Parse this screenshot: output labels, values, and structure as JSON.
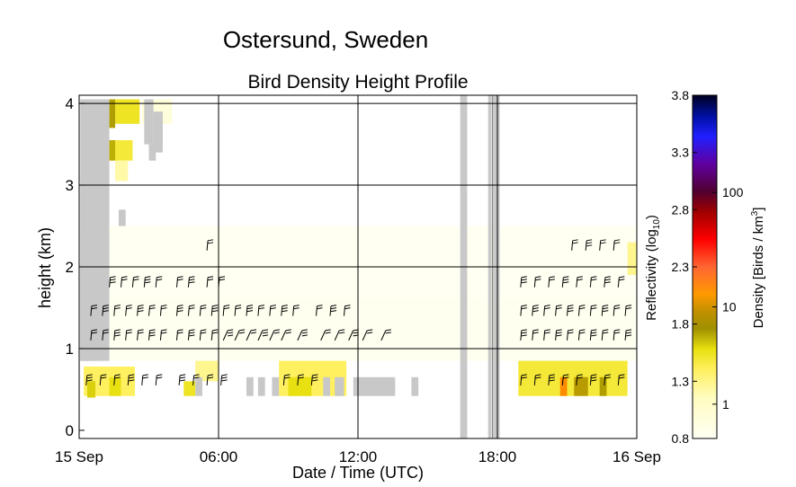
{
  "chart_data": {
    "type": "heatmap",
    "suptitle": "Ostersund, Sweden",
    "title": "Bird Density Height Profile",
    "xlabel": "Date / Time (UTC)",
    "ylabel": "height (km)",
    "x_ticks": [
      {
        "hour": 0,
        "label": "15 Sep"
      },
      {
        "hour": 6,
        "label": "06:00"
      },
      {
        "hour": 12,
        "label": "12:00"
      },
      {
        "hour": 18,
        "label": "18:00"
      },
      {
        "hour": 24,
        "label": "16 Sep"
      }
    ],
    "y_ticks": [
      0,
      1,
      2,
      3,
      4
    ],
    "xlim_hours": [
      0,
      24
    ],
    "ylim_km": [
      -0.1,
      4.1
    ],
    "grid": true,
    "colorbar": {
      "left_label": "Reflectivity (log",
      "left_label_sub": "10",
      "left_label_end": ")",
      "left_ticks": [
        "0.8",
        "1.3",
        "1.8",
        "2.3",
        "2.8",
        "3.3",
        "3.8"
      ],
      "left_range": [
        0.8,
        3.8
      ],
      "right_label": "Density [Birds / km",
      "right_label_sup": "3",
      "right_label_end": "]",
      "right_ticks": [
        {
          "label": "1",
          "value": 1
        },
        {
          "label": "10",
          "value": 10
        },
        {
          "label": "100",
          "value": 100
        }
      ],
      "right_ticks_value_at": [
        1.1,
        1.95,
        2.95
      ]
    },
    "missing_data_color": "#c8c8c8",
    "gaps_hours": [
      [
        16.4,
        16.7
      ],
      [
        17.6,
        17.75
      ],
      [
        17.85,
        18.1
      ]
    ],
    "gray_region": {
      "x_start_hours": 0.05,
      "steps": [
        {
          "top_km": 4.05,
          "x_end_hours": 1.3
        },
        {
          "top_km": 3.05,
          "x_end_hours": 1.1
        },
        {
          "top_km": 2.4,
          "x_end_hours": 0.8
        },
        {
          "top_km": 2.0,
          "x_end_hours": 0.6
        },
        {
          "top_km": 1.6,
          "x_end_hours": 0.4
        }
      ]
    },
    "density_cells": [
      {
        "t0": 1.3,
        "t1": 1.55,
        "h0": 3.7,
        "h1": 4.05,
        "v": 1.6
      },
      {
        "t0": 1.55,
        "t1": 2.6,
        "h0": 3.75,
        "h1": 4.05,
        "v": 1.35
      },
      {
        "t0": 1.3,
        "t1": 1.55,
        "h0": 3.3,
        "h1": 3.55,
        "v": 1.55
      },
      {
        "t0": 1.55,
        "t1": 2.3,
        "h0": 3.3,
        "h1": 3.55,
        "v": 1.3
      },
      {
        "t0": 1.55,
        "t1": 2.1,
        "h0": 3.05,
        "h1": 3.3,
        "v": 1.05
      },
      {
        "t0": 2.7,
        "t1": 4.0,
        "h0": 3.75,
        "h1": 4.05,
        "v": 0.9
      },
      {
        "t0": 0.2,
        "t1": 2.4,
        "h0": 0.42,
        "h1": 0.78,
        "v": 1.2
      },
      {
        "t0": 0.35,
        "t1": 0.7,
        "h0": 0.4,
        "h1": 0.6,
        "v": 1.45
      },
      {
        "t0": 1.3,
        "t1": 1.8,
        "h0": 0.42,
        "h1": 0.65,
        "v": 1.4
      },
      {
        "t0": 4.5,
        "t1": 5.0,
        "h0": 0.42,
        "h1": 0.6,
        "v": 1.35
      },
      {
        "t0": 5.0,
        "t1": 6.0,
        "h0": 0.6,
        "h1": 0.85,
        "v": 1.1
      },
      {
        "t0": 8.6,
        "t1": 11.5,
        "h0": 0.42,
        "h1": 0.85,
        "v": 1.2
      },
      {
        "t0": 9.0,
        "t1": 10.0,
        "h0": 0.42,
        "h1": 0.65,
        "v": 1.4
      },
      {
        "t0": 18.9,
        "t1": 23.6,
        "h0": 0.42,
        "h1": 0.85,
        "v": 1.3
      },
      {
        "t0": 20.7,
        "t1": 21.0,
        "h0": 0.42,
        "h1": 0.65,
        "v": 2.0
      },
      {
        "t0": 21.3,
        "t1": 21.9,
        "h0": 0.42,
        "h1": 0.65,
        "v": 1.65
      },
      {
        "t0": 22.4,
        "t1": 22.7,
        "h0": 0.42,
        "h1": 0.65,
        "v": 1.6
      },
      {
        "t0": 23.6,
        "t1": 24.0,
        "h0": 1.9,
        "h1": 2.3,
        "v": 1.1
      }
    ],
    "missing_cells": [
      {
        "t0": 2.8,
        "t1": 3.2,
        "h0": 3.5,
        "h1": 4.05
      },
      {
        "t0": 3.2,
        "t1": 3.6,
        "h0": 3.4,
        "h1": 3.9
      },
      {
        "t0": 3.0,
        "t1": 3.3,
        "h0": 3.3,
        "h1": 3.5
      },
      {
        "t0": 1.7,
        "t1": 2.0,
        "h0": 2.5,
        "h1": 2.7
      },
      {
        "t0": 5.0,
        "t1": 5.3,
        "h0": 0.42,
        "h1": 0.65
      },
      {
        "t0": 7.2,
        "t1": 7.5,
        "h0": 0.42,
        "h1": 0.65
      },
      {
        "t0": 7.7,
        "t1": 8.0,
        "h0": 0.42,
        "h1": 0.65
      },
      {
        "t0": 8.3,
        "t1": 8.6,
        "h0": 0.42,
        "h1": 0.65
      },
      {
        "t0": 10.5,
        "t1": 10.8,
        "h0": 0.42,
        "h1": 0.65
      },
      {
        "t0": 11.0,
        "t1": 11.4,
        "h0": 0.42,
        "h1": 0.65
      },
      {
        "t0": 11.8,
        "t1": 13.6,
        "h0": 0.42,
        "h1": 0.65
      },
      {
        "t0": 14.3,
        "t1": 14.6,
        "h0": 0.42,
        "h1": 0.65
      }
    ],
    "wind_barbs": {
      "heights_km": [
        0.55,
        1.1,
        1.4,
        1.75,
        2.2
      ],
      "rows": [
        {
          "h": 0.55,
          "times": [
            0.3,
            0.9,
            1.5,
            2.1,
            2.7,
            3.3,
            4.3,
            4.9,
            5.5,
            6.1,
            8.8,
            9.4,
            10.0,
            19.0,
            19.6,
            20.2,
            20.8,
            21.4,
            22.0,
            22.6,
            23.2
          ]
        },
        {
          "h": 1.1,
          "times": [
            0.5,
            1.0,
            1.5,
            2.0,
            2.5,
            3.0,
            3.5,
            4.2,
            4.7,
            5.2,
            5.7,
            6.2,
            6.7,
            7.2,
            7.7,
            8.2,
            8.7,
            9.4,
            10.4,
            11.0,
            11.6,
            12.2,
            13.0,
            19.0,
            19.5,
            20.0,
            20.5,
            21.0,
            21.5,
            22.0,
            22.5,
            23.0,
            23.5
          ]
        },
        {
          "h": 1.4,
          "times": [
            0.5,
            1.0,
            1.5,
            2.0,
            2.5,
            3.0,
            3.5,
            4.2,
            4.7,
            5.2,
            5.7,
            6.2,
            6.7,
            7.2,
            7.7,
            8.2,
            8.7,
            9.2,
            10.2,
            10.8,
            11.4,
            19.0,
            19.5,
            20.0,
            20.5,
            21.0,
            21.5,
            22.0,
            22.5,
            23.0,
            23.5
          ]
        },
        {
          "h": 1.75,
          "times": [
            1.3,
            1.8,
            2.3,
            2.8,
            3.3,
            4.2,
            4.7,
            5.5,
            6.0,
            19.0,
            19.6,
            20.2,
            20.8,
            21.4,
            22.0,
            22.6,
            23.2
          ]
        },
        {
          "h": 2.2,
          "times": [
            5.5,
            21.2,
            21.8,
            22.4,
            23.0
          ]
        }
      ]
    }
  }
}
